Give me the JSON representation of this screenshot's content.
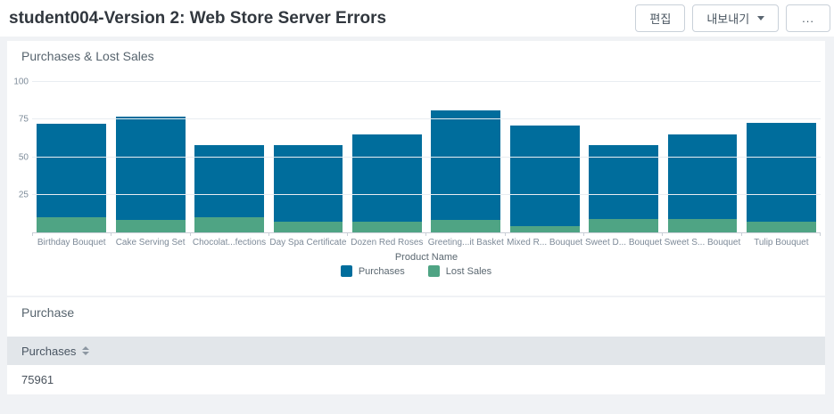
{
  "header": {
    "title": "student004-Version 2: Web Store Server Errors",
    "edit_label": "편집",
    "export_label": "내보내기",
    "more_label": "..."
  },
  "chart_panel": {
    "title": "Purchases & Lost Sales"
  },
  "chart_data": {
    "type": "bar",
    "stacked": true,
    "title": "Purchases & Lost Sales",
    "xlabel": "Product Name",
    "ylabel": "",
    "ylim": [
      0,
      100
    ],
    "y_ticks": [
      25,
      50,
      75,
      100
    ],
    "grid": true,
    "legend_position": "bottom",
    "categories": [
      "Birthday Bouquet",
      "Cake Serving Set",
      "Chocolat...fections",
      "Day Spa Certificate",
      "Dozen Red Roses",
      "Greeting...it Basket",
      "Mixed R... Bouquet",
      "Sweet D... Bouquet",
      "Sweet S... Bouquet",
      "Tulip Bouquet"
    ],
    "series": [
      {
        "name": "Purchases",
        "color": "#006d9c",
        "values": [
          62,
          69,
          48,
          51,
          58,
          73,
          67,
          49,
          56,
          66
        ]
      },
      {
        "name": "Lost Sales",
        "color": "#4fa484",
        "values": [
          10,
          8,
          10,
          7,
          7,
          8,
          4,
          9,
          9,
          7
        ]
      }
    ]
  },
  "table_panel": {
    "title": "Purchase",
    "columns": [
      {
        "label": "Purchases",
        "sortable": true
      }
    ],
    "rows": [
      [
        "75961"
      ]
    ]
  },
  "colors": {
    "purchases": "#006d9c",
    "lost_sales": "#4fa484",
    "page_background": "#f0f2f5",
    "panel_background": "#ffffff",
    "table_header_background": "#e2e6ea"
  }
}
